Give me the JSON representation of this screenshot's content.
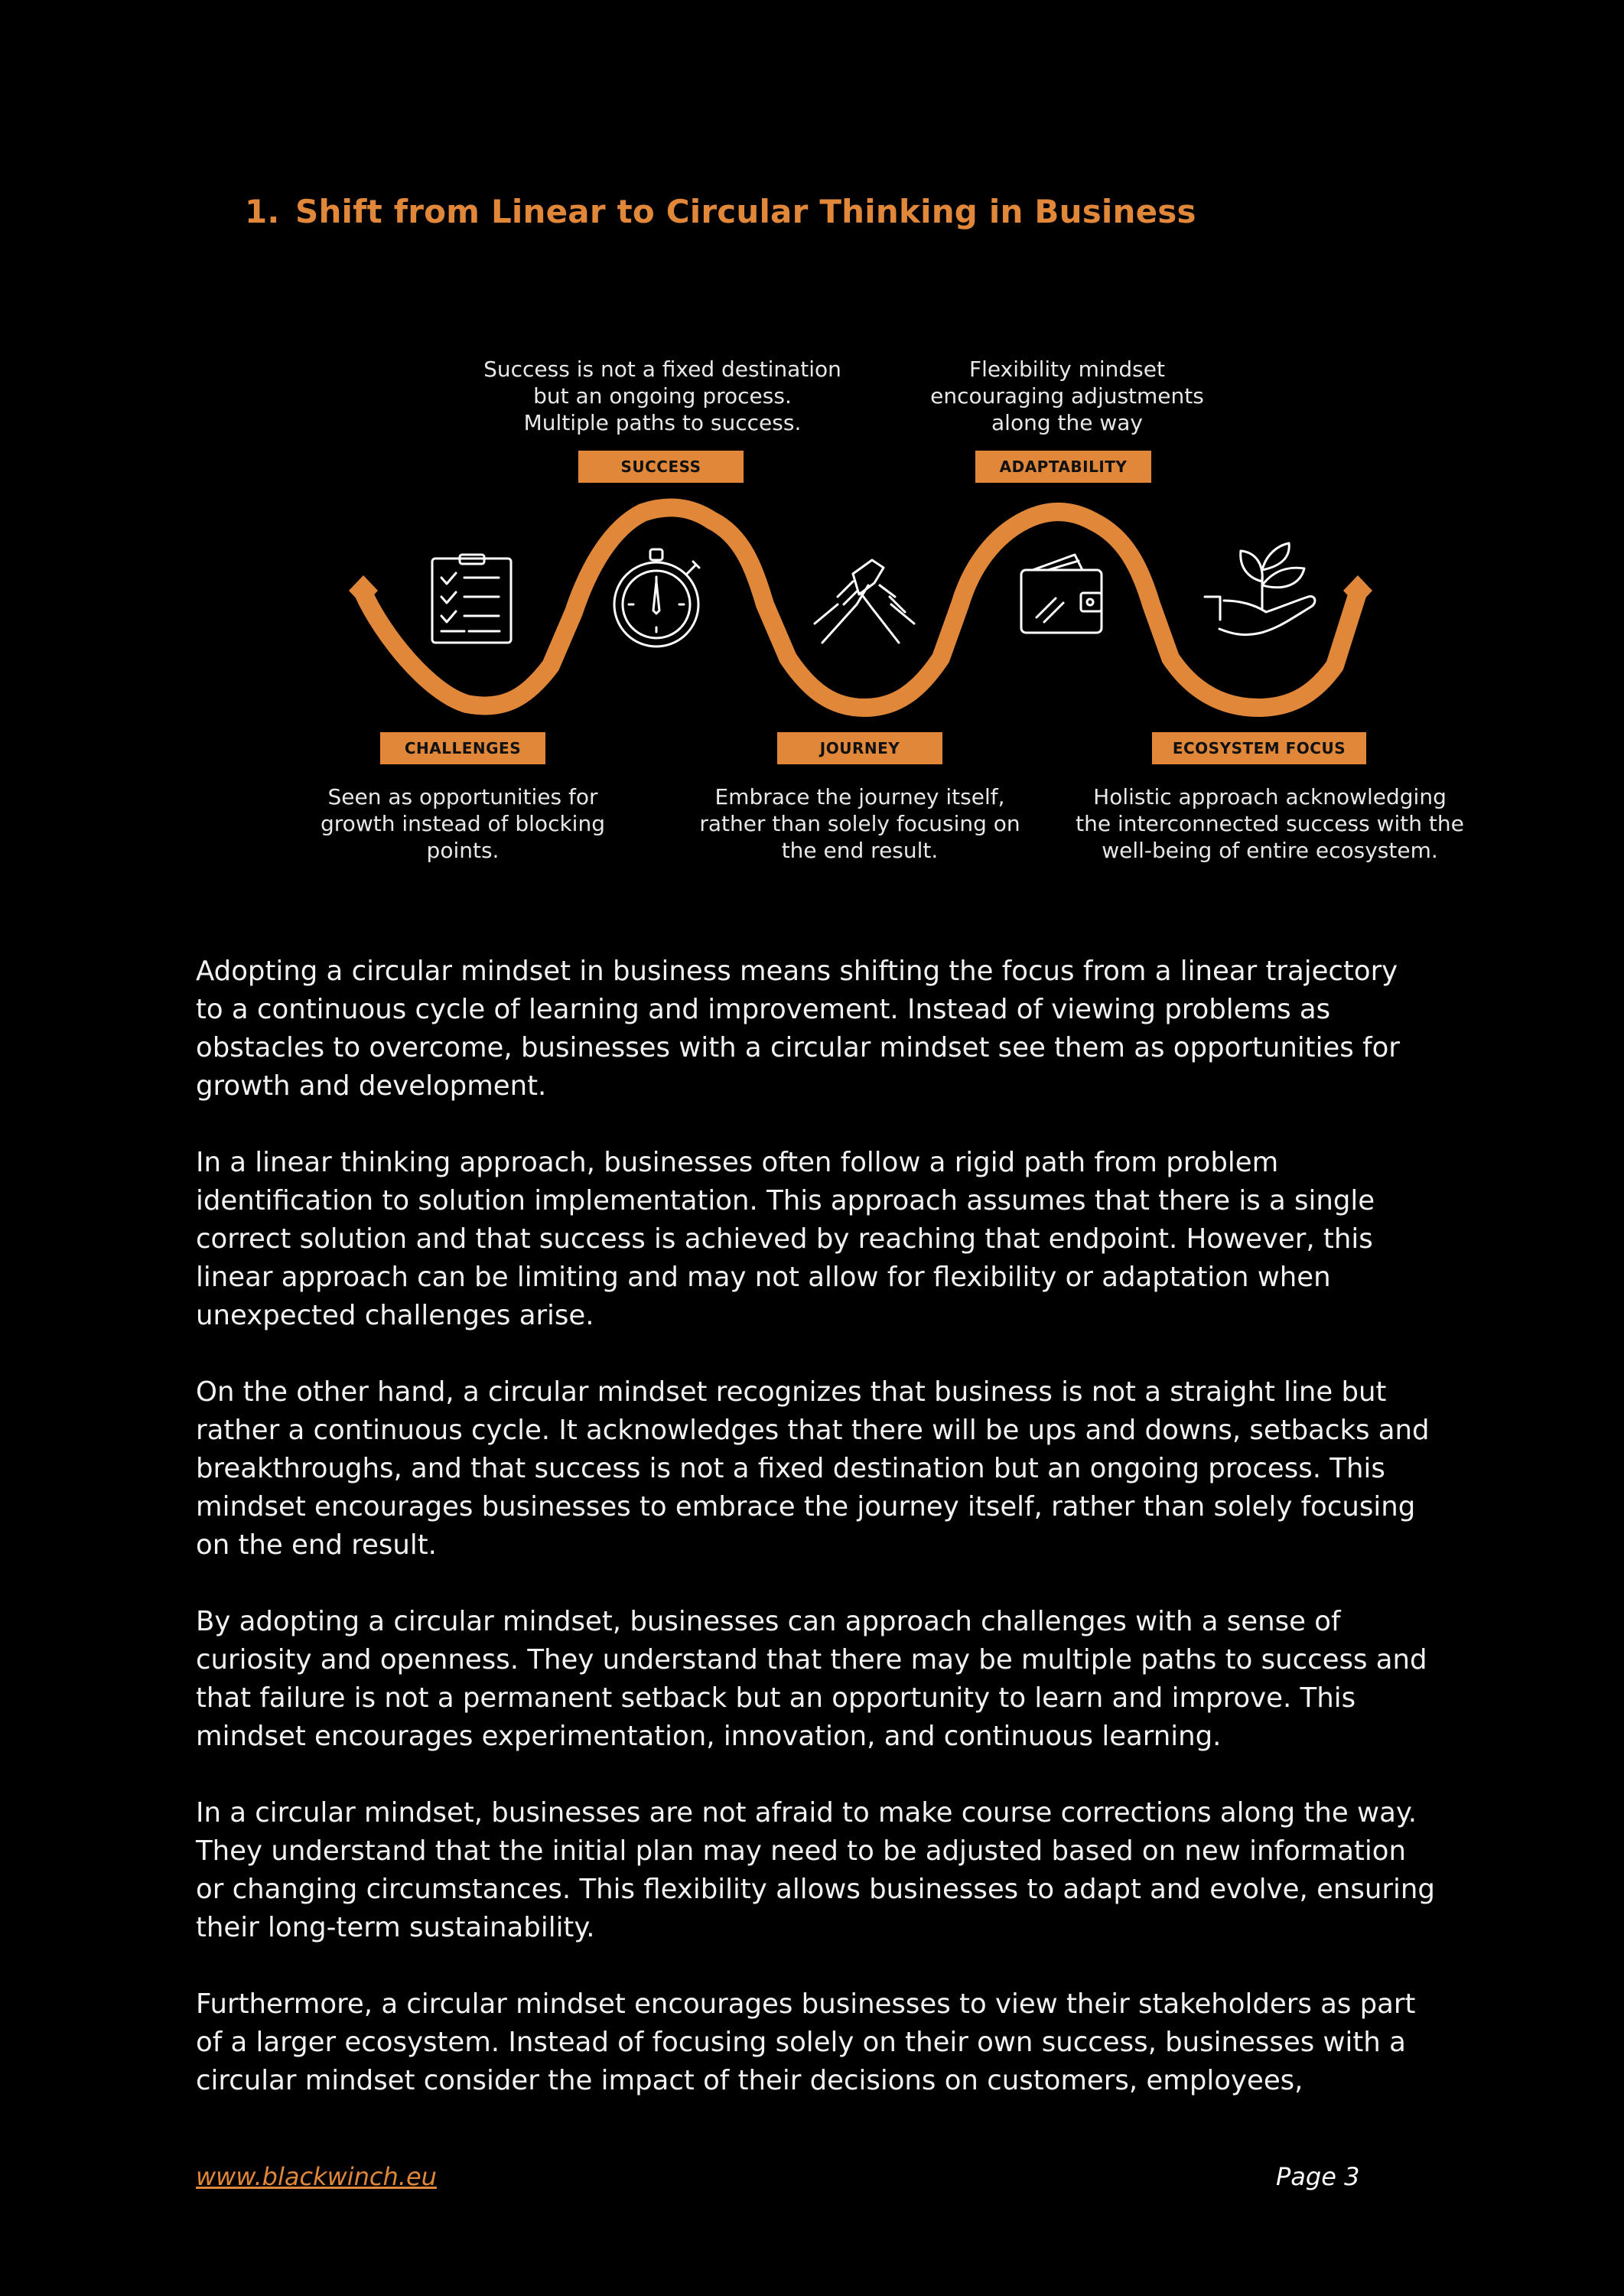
{
  "heading": {
    "number": "1.",
    "title": "Shift from Linear to Circular Thinking in Business"
  },
  "diagram": {
    "accent": "#E0873A",
    "stages": [
      {
        "tag": "CHALLENGES",
        "caption": [
          "Seen as opportunities for",
          "growth instead of blocking",
          "points."
        ]
      },
      {
        "tag": "SUCCESS",
        "caption": [
          "Success is not a fixed destination",
          "but an ongoing process.",
          "Multiple paths to success."
        ]
      },
      {
        "tag": "JOURNEY",
        "caption": [
          "Embrace the journey itself,",
          "rather than solely focusing on",
          "the end result."
        ]
      },
      {
        "tag": "ADAPTABILITY",
        "caption": [
          "Flexibility mindset",
          "encouraging adjustments",
          "along the way"
        ]
      },
      {
        "tag": "ECOSYSTEM FOCUS",
        "caption": [
          "Holistic approach acknowledging",
          "the interconnected success with the",
          "well-being of entire ecosystem."
        ]
      }
    ],
    "icons": [
      "checklist-icon",
      "stopwatch-icon",
      "handshake-icon",
      "wallet-icon",
      "plant-in-hand-icon"
    ]
  },
  "paragraphs": [
    [
      "Adopting a circular mindset in business means shifting the focus from a linear trajectory",
      "to a continuous cycle of learning and improvement. Instead of viewing problems as",
      "obstacles to overcome, businesses with a circular mindset see them as opportunities for",
      "growth and development."
    ],
    [
      "In a linear thinking approach, businesses often follow a rigid path from problem",
      "identification to solution implementation. This approach assumes that there is a single",
      "correct solution and that success is achieved by reaching that endpoint. However, this",
      "linear approach can be limiting and may not allow for flexibility or adaptation when",
      "unexpected challenges arise."
    ],
    [
      "On the other hand, a circular mindset recognizes that business is not a straight line but",
      "rather a continuous cycle. It acknowledges that there will be ups and downs, setbacks and",
      "breakthroughs, and that success is not a fixed destination but an ongoing process. This",
      "mindset encourages businesses to embrace the journey itself, rather than solely focusing",
      "on the end result."
    ],
    [
      "By adopting a circular mindset, businesses can approach challenges with a sense of",
      "curiosity and openness. They understand that there may be multiple paths to success and",
      "that failure is not a permanent setback but an opportunity to learn and improve. This",
      "mindset encourages experimentation, innovation, and continuous learning."
    ],
    [
      "In a circular mindset, businesses are not afraid to make course corrections along the way.",
      "They understand that the initial plan may need to be adjusted based on new information",
      "or changing circumstances. This flexibility allows businesses to adapt and evolve, ensuring",
      "their long-term sustainability."
    ],
    [
      "Furthermore, a circular mindset encourages businesses to view their stakeholders as part",
      "of a larger ecosystem. Instead of focusing solely on their own success, businesses with a",
      "circular mindset consider the impact of their decisions on customers, employees,"
    ]
  ],
  "footer": {
    "link": "www.blackwinch.eu",
    "page": "Page 3"
  }
}
